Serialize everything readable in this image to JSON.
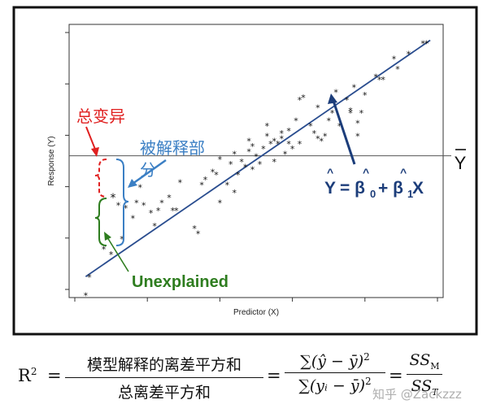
{
  "chart_data": {
    "type": "scatter",
    "title": "",
    "xlabel": "Predictor (X)",
    "ylabel": "Response (Y)",
    "xlim": [
      0,
      100
    ],
    "ylim": [
      0,
      100
    ],
    "grid": false,
    "mean_line": {
      "label": "Y",
      "value": 52
    },
    "regression_line": {
      "x": [
        3,
        98
      ],
      "y": [
        5,
        97
      ],
      "color": "#2a4d8f"
    },
    "points": [
      [
        3,
        -2
      ],
      [
        4,
        5
      ],
      [
        8,
        16
      ],
      [
        10,
        14
      ],
      [
        12,
        33
      ],
      [
        13,
        20
      ],
      [
        14,
        32
      ],
      [
        16,
        28
      ],
      [
        17,
        34
      ],
      [
        18,
        40
      ],
      [
        19,
        33
      ],
      [
        21,
        30
      ],
      [
        22,
        25
      ],
      [
        23,
        31
      ],
      [
        24,
        34
      ],
      [
        26,
        36
      ],
      [
        27,
        31
      ],
      [
        28,
        31
      ],
      [
        29,
        42
      ],
      [
        33,
        24
      ],
      [
        34,
        22
      ],
      [
        35,
        41
      ],
      [
        36,
        43
      ],
      [
        38,
        46
      ],
      [
        39,
        45
      ],
      [
        40,
        34
      ],
      [
        40,
        51
      ],
      [
        42,
        41
      ],
      [
        43,
        49
      ],
      [
        44,
        53
      ],
      [
        44,
        38
      ],
      [
        45,
        45
      ],
      [
        46,
        50
      ],
      [
        47,
        48
      ],
      [
        48,
        54
      ],
      [
        48,
        58
      ],
      [
        49,
        56
      ],
      [
        49,
        47
      ],
      [
        50,
        52
      ],
      [
        51,
        49
      ],
      [
        52,
        55
      ],
      [
        53,
        60
      ],
      [
        53,
        64
      ],
      [
        54,
        57
      ],
      [
        55,
        50
      ],
      [
        55,
        58
      ],
      [
        56,
        57
      ],
      [
        57,
        59
      ],
      [
        57,
        61
      ],
      [
        58,
        53
      ],
      [
        59,
        62
      ],
      [
        59,
        57
      ],
      [
        60,
        55
      ],
      [
        61,
        66
      ],
      [
        62,
        74
      ],
      [
        62,
        57
      ],
      [
        63,
        75
      ],
      [
        65,
        64
      ],
      [
        66,
        61
      ],
      [
        67,
        59
      ],
      [
        67,
        71
      ],
      [
        68,
        58
      ],
      [
        69,
        60
      ],
      [
        70,
        66
      ],
      [
        71,
        69
      ],
      [
        72,
        77
      ],
      [
        73,
        64
      ],
      [
        75,
        74
      ],
      [
        76,
        70
      ],
      [
        76,
        69
      ],
      [
        77,
        79
      ],
      [
        78,
        60
      ],
      [
        78,
        65
      ],
      [
        79,
        69
      ],
      [
        80,
        76
      ],
      [
        83,
        83
      ],
      [
        84,
        82
      ],
      [
        85,
        82
      ],
      [
        88,
        90
      ],
      [
        89,
        86
      ],
      [
        92,
        92
      ],
      [
        96,
        96
      ],
      [
        97,
        96
      ]
    ],
    "annotations": {
      "total": {
        "text": "总变异",
        "color": "#e02020"
      },
      "explained": {
        "text": "被解释部分",
        "color": "#3b7fc4"
      },
      "unexplained": {
        "text": "Unexplained",
        "color": "#2e7d1f"
      },
      "equation": {
        "text": "Ŷ = β̂0 + β̂1X",
        "color": "#1c3d7a"
      }
    },
    "highlight_point": [
      13,
      40
    ]
  },
  "formula": {
    "lhs": "R",
    "lhs_sup": "2",
    "frac1_num": "模型解释的离差平方和",
    "frac1_den": "总离差平方和",
    "frac2_num": "∑(ŷ − ȳ)",
    "frac2_den": "∑(yᵢ − ȳ)",
    "frac2_sup": "2",
    "frac3_num": "SS",
    "frac3_num_sub": "M",
    "frac3_den": "SS",
    "frac3_den_sub": "T",
    "eq": "="
  },
  "watermark": "知乎 @Zackzzz"
}
